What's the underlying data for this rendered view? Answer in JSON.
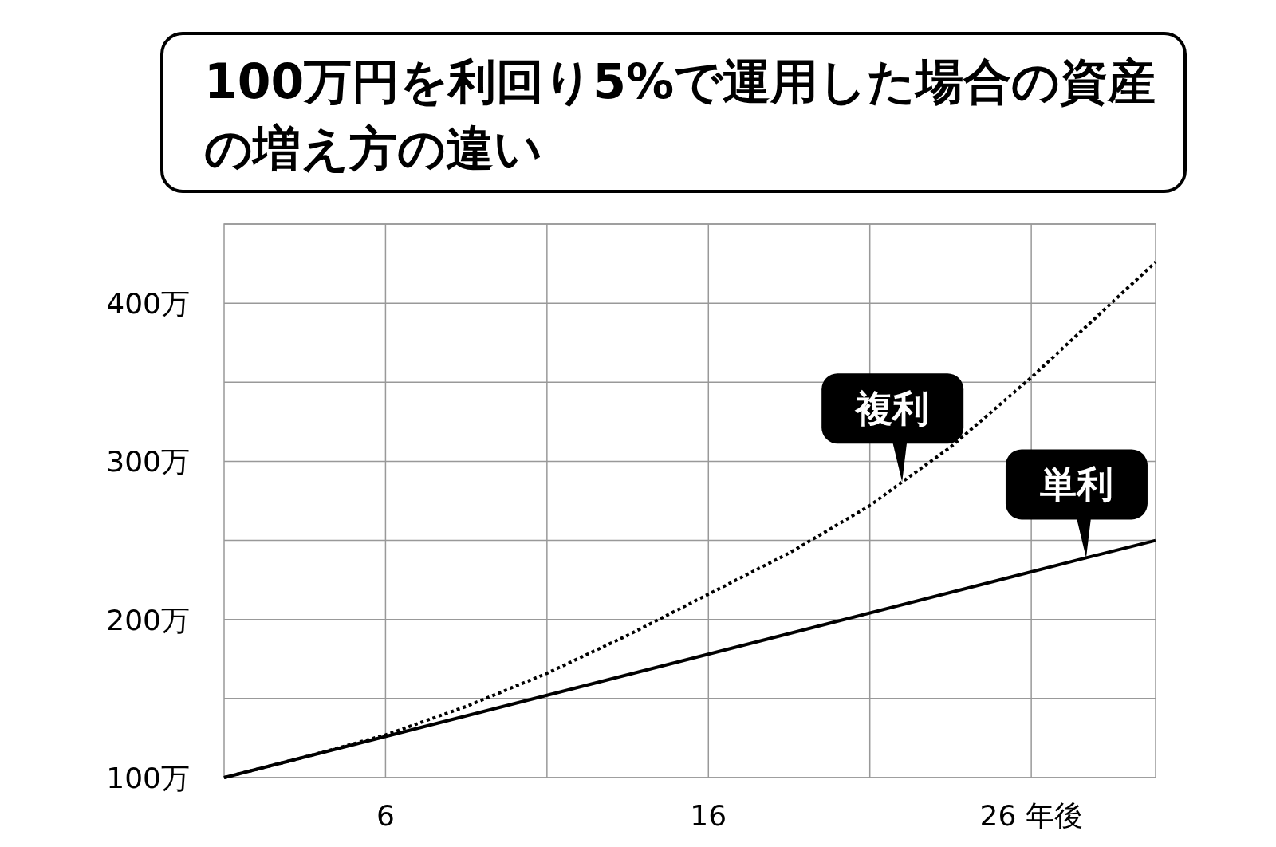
{
  "chart_data": {
    "type": "line",
    "title": "100万円を利回り5%で運用した場合の資産の増え方の違い",
    "xlim": [
      1,
      29.85
    ],
    "xticks": [
      6,
      {
        "value": 11,
        "label": null
      },
      16,
      {
        "value": 21,
        "label": null
      },
      {
        "value": 26,
        "label": "26 年後"
      }
    ],
    "ylim": [
      100,
      450
    ],
    "yticks": [
      {
        "value": 100,
        "label": "100万"
      },
      {
        "value": 150,
        "label": null
      },
      {
        "value": 200,
        "label": "200万"
      },
      {
        "value": 250,
        "label": null
      },
      {
        "value": 300,
        "label": "300万"
      },
      {
        "value": 350,
        "label": null
      },
      {
        "value": 400,
        "label": "400万"
      },
      {
        "value": 450,
        "label": null
      }
    ],
    "grid": true,
    "series": [
      {
        "color": "#000000",
        "line_style": "dotted",
        "x": [
          1,
          3.5,
          6,
          8.5,
          11,
          13.5,
          16,
          18.5,
          21,
          22,
          23.5,
          26,
          29.85
        ],
        "values": [
          100,
          113,
          127,
          145,
          166,
          190,
          216,
          242,
          272,
          287,
          309,
          353,
          426
        ]
      },
      {
        "color": "#000000",
        "line_style": "solid",
        "x": [
          1,
          27.7,
          29.85
        ],
        "values": [
          100,
          239,
          250
        ]
      }
    ],
    "annotations": [
      {
        "text": "複利",
        "x": 22,
        "y": 287
      },
      {
        "text": "単利",
        "x": 27.7,
        "y": 239
      }
    ]
  }
}
